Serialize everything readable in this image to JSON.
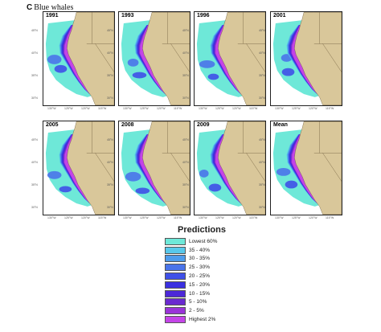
{
  "figure": {
    "letter": "C",
    "title": "Blue whales"
  },
  "panels": [
    {
      "label": "1991"
    },
    {
      "label": "1993"
    },
    {
      "label": "1996"
    },
    {
      "label": "2001"
    },
    {
      "label": "2005"
    },
    {
      "label": "2008"
    },
    {
      "label": "2009"
    },
    {
      "label": "Mean"
    }
  ],
  "axis_labels": {
    "lat": [
      "45°N",
      "40°N",
      "35°N",
      "30°N"
    ],
    "lon": [
      "130°W",
      "125°W",
      "120°W",
      "115°W"
    ]
  },
  "legend": {
    "title": "Predictions",
    "items": [
      {
        "label": "Lowest 60%",
        "color": "#6ee8d8"
      },
      {
        "label": "35 - 40%",
        "color": "#58c8ea"
      },
      {
        "label": "30 - 35%",
        "color": "#4e9cec"
      },
      {
        "label": "25 - 30%",
        "color": "#4a74ea"
      },
      {
        "label": "20 - 25%",
        "color": "#3f50e8"
      },
      {
        "label": "15 - 20%",
        "color": "#3a30e0"
      },
      {
        "label": "10 - 15%",
        "color": "#4c28d8"
      },
      {
        "label": "5 - 10%",
        "color": "#6a2ad0"
      },
      {
        "label": "2 - 5%",
        "color": "#9a34d8"
      },
      {
        "label": "Highest 2%",
        "color": "#c444e8"
      }
    ]
  },
  "colors": {
    "land": "#d9c79a",
    "ocean": "#ffffff",
    "coast": "#6b5a3a"
  }
}
